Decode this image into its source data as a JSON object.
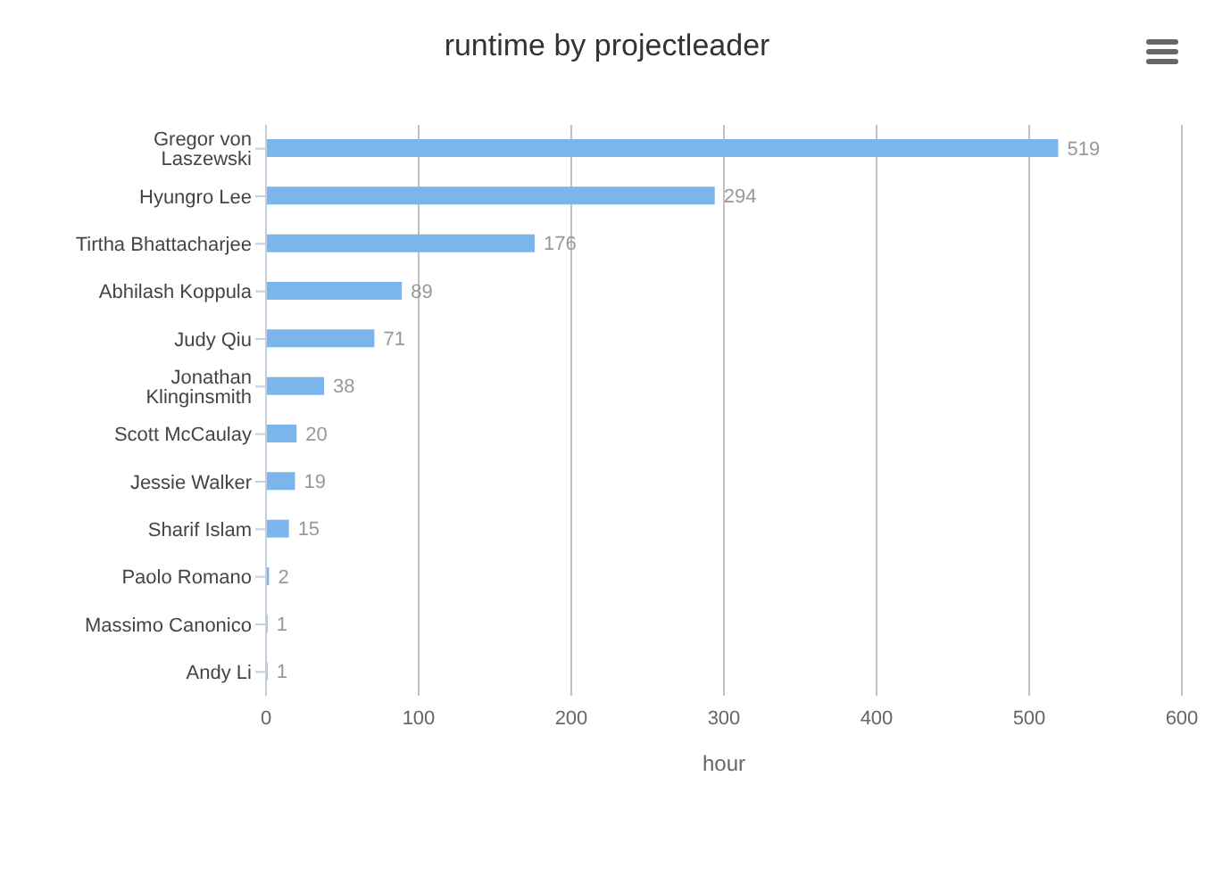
{
  "chart_data": {
    "type": "bar",
    "orientation": "horizontal",
    "title": "runtime by projectleader",
    "xlabel": "hour",
    "categories": [
      "Gregor von Laszewski",
      "Hyungro Lee",
      "Tirtha Bhattacharjee",
      "Abhilash Koppula",
      "Judy Qiu",
      "Jonathan Klinginsmith",
      "Scott McCaulay",
      "Jessie Walker",
      "Sharif Islam",
      "Paolo Romano",
      "Massimo Canonico",
      "Andy Li"
    ],
    "values": [
      519,
      294,
      176,
      89,
      71,
      38,
      20,
      19,
      15,
      2,
      1,
      1
    ],
    "color": "#7cb5ec",
    "xlim": [
      0,
      600
    ],
    "xticks": [
      0,
      100,
      200,
      300,
      400,
      500,
      600
    ],
    "grid": "x",
    "data_labels": true
  }
}
